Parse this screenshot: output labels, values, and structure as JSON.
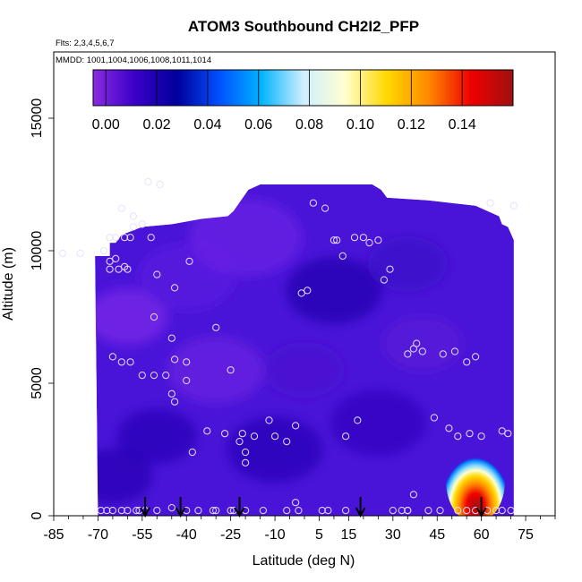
{
  "chart_data": {
    "type": "heatmap",
    "title": "ATOM3 Southbound CH2I2_PFP",
    "flights_label": "Flts: 2,3,4,5,6,7",
    "mmdd_label": "MMDD: 1001,1004,1006,1008,1011,1014",
    "xlabel": "Latitude (deg N)",
    "ylabel": "Altitude (m)",
    "xlim": [
      -85,
      85
    ],
    "ylim": [
      0,
      17500
    ],
    "x_ticks": [
      -85,
      -70,
      -55,
      -40,
      -25,
      -10,
      5,
      15,
      30,
      45,
      60,
      75
    ],
    "y_ticks": [
      0,
      5000,
      10000,
      15000
    ],
    "colorbar": {
      "range": [
        -0.005,
        0.16
      ],
      "ticks": [
        0.0,
        0.02,
        0.04,
        0.06,
        0.08,
        0.1,
        0.12,
        0.14
      ],
      "tick_labels": [
        "0.00",
        "0.02",
        "0.04",
        "0.06",
        "0.08",
        "0.10",
        "0.12",
        "0.14"
      ],
      "colors": [
        "#8a2be2",
        "#3a00c8",
        "#00009c",
        "#0050ff",
        "#00b4ff",
        "#cfeeff",
        "#ffffd0",
        "#ffd800",
        "#ff8800",
        "#ee0000",
        "#a01010"
      ]
    },
    "domain_outline": {
      "lat": [
        -71,
        -66,
        -66,
        -64,
        -62,
        -55,
        -45,
        -35,
        -26,
        -24,
        -19,
        -15,
        23,
        26,
        28,
        42,
        58,
        60,
        66,
        67,
        69,
        71,
        71,
        57,
        45,
        30,
        0,
        -30,
        -60,
        -70,
        -71
      ],
      "alt": [
        9800,
        9800,
        10300,
        10300,
        10600,
        10900,
        11000,
        11200,
        11300,
        11500,
        12300,
        12500,
        12500,
        12300,
        12000,
        11900,
        11700,
        11600,
        11300,
        11000,
        10900,
        10400,
        0,
        0,
        0,
        0,
        0,
        0,
        0,
        0,
        9800
      ]
    },
    "plume": {
      "center_lat": 60,
      "center_alt": 500,
      "peak_value": 0.16,
      "extent_lat": [
        48,
        68
      ],
      "extent_alt": [
        0,
        2600
      ]
    },
    "sample_points": {
      "lat": [
        -82,
        -76,
        -68,
        -66,
        -64,
        -61,
        -59,
        -58,
        -66,
        -63,
        -60,
        -55,
        -52,
        -50,
        -44,
        -39,
        -49,
        -53,
        -62,
        -58,
        -61,
        -64,
        -66,
        -51,
        -45,
        -44,
        -40,
        -59,
        -62,
        -65,
        -55,
        -51,
        -47,
        -45,
        -44,
        -40,
        -30,
        -25,
        -21,
        -20,
        -27,
        -33,
        -38,
        -17,
        -20,
        -22,
        -12,
        -10,
        -6,
        -3,
        -1,
        1,
        3,
        7,
        10,
        11,
        13,
        17,
        20,
        22,
        25,
        27,
        29,
        35,
        37,
        38,
        40,
        44,
        47,
        49,
        51,
        52,
        55,
        56,
        58,
        60,
        63,
        67,
        69,
        70,
        71,
        14,
        18,
        -14,
        -6,
        -2,
        8,
        14,
        -36,
        -31,
        -24,
        -50,
        -54,
        -56,
        -57,
        -60,
        -62,
        -65,
        -67,
        -69,
        -45,
        -40,
        -30,
        -25,
        -20,
        30,
        33,
        35,
        37,
        46,
        52,
        55,
        58,
        62,
        65,
        67,
        42,
        35,
        -3,
        6
      ],
      "alt": [
        9900,
        9900,
        10000,
        9600,
        9700,
        9400,
        10500,
        10900,
        9300,
        9300,
        9300,
        11000,
        10500,
        9100,
        8600,
        9600,
        12500,
        12600,
        11600,
        11300,
        10500,
        10500,
        10500,
        7500,
        6700,
        5900,
        5800,
        5800,
        5800,
        6000,
        5300,
        5300,
        5300,
        4600,
        4300,
        5100,
        7100,
        5500,
        3100,
        2400,
        3100,
        3200,
        2400,
        3000,
        2000,
        2800,
        3600,
        3000,
        2800,
        3400,
        8400,
        8500,
        11800,
        11600,
        10400,
        10400,
        9800,
        10500,
        10500,
        10300,
        10400,
        8900,
        9300,
        6100,
        6300,
        6500,
        6200,
        3700,
        6100,
        3300,
        6200,
        3000,
        5800,
        3100,
        6000,
        3000,
        11800,
        3200,
        3100,
        200,
        11700,
        3000,
        3600,
        200,
        200,
        200,
        200,
        200,
        200,
        200,
        200,
        200,
        200,
        200,
        200,
        200,
        200,
        200,
        200,
        200,
        300,
        200,
        200,
        200,
        200,
        200,
        200,
        200,
        800,
        200,
        200,
        200,
        200,
        200,
        200,
        200,
        200,
        200,
        500,
        200
      ]
    },
    "flight_arrows_lat": [
      -54,
      -42,
      -22,
      19,
      60
    ],
    "annotations": []
  }
}
